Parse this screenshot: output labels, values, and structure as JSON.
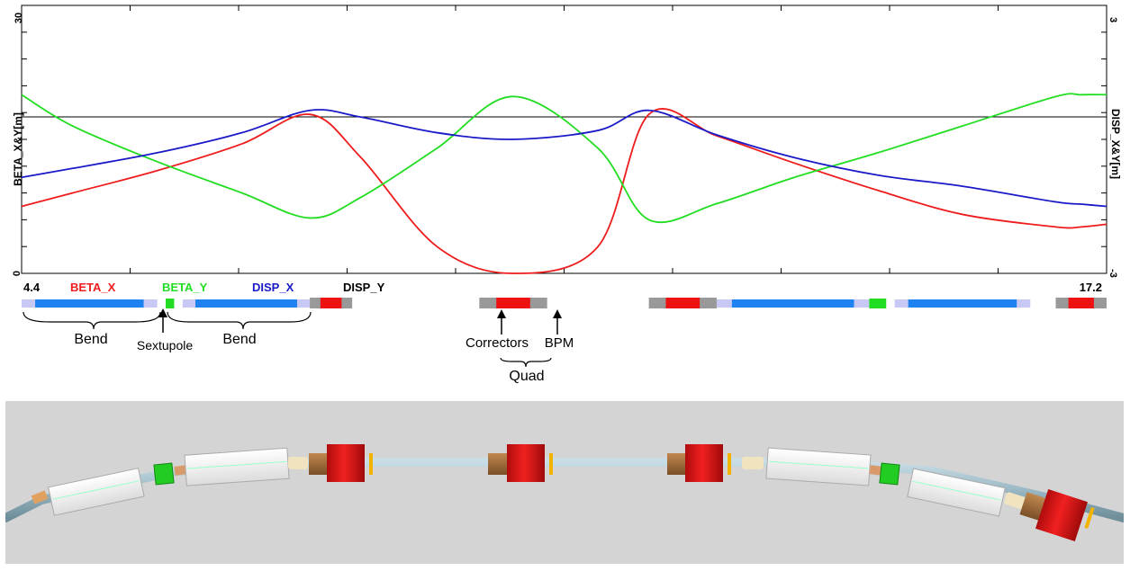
{
  "chart_data": {
    "type": "line",
    "x": [
      4.4,
      5.0,
      6.0,
      7.0,
      7.8,
      8.4,
      9.3,
      10.2,
      11.2,
      11.8,
      12.6,
      13.5,
      14.5,
      15.5,
      16.6,
      16.9,
      17.2
    ],
    "xlim": [
      4.4,
      17.2
    ],
    "y_left_label": "BETA_X&Y[m]",
    "y_right_label": "DISP_X&Y[m]",
    "y_left_lim": [
      0,
      30
    ],
    "y_right_lim": [
      -3,
      3
    ],
    "y_left_ticks": [
      "0",
      "30"
    ],
    "y_right_ticks": [
      "-3",
      "3"
    ],
    "x_range_labels": {
      "start": "4.4",
      "end": "17.2"
    },
    "series": [
      {
        "name": "BETA_X",
        "axis": "left",
        "color": "#ee1c1c",
        "values": [
          7.5,
          9.0,
          11.5,
          14.5,
          17.8,
          13.0,
          3.0,
          0.0,
          3.0,
          17.8,
          15.4,
          12.4,
          9.3,
          6.6,
          5.2,
          5.2,
          5.5
        ]
      },
      {
        "name": "BETA_Y",
        "axis": "left",
        "color": "#22dd22",
        "values": [
          20.0,
          16.5,
          12.5,
          9.0,
          6.2,
          8.5,
          14.0,
          19.8,
          14.0,
          6.0,
          7.8,
          10.7,
          13.5,
          16.5,
          19.8,
          20.0,
          20.0
        ]
      },
      {
        "name": "DISP_X",
        "axis": "right",
        "color": "#1a1ac8",
        "values": [
          -0.85,
          -0.65,
          -0.3,
          0.15,
          0.65,
          0.5,
          0.15,
          0.0,
          0.2,
          0.65,
          0.1,
          -0.4,
          -0.8,
          -1.05,
          -1.4,
          -1.45,
          -1.5
        ]
      },
      {
        "name": "DISP_Y",
        "axis": "right",
        "color": "#000000",
        "values": [
          0,
          0,
          0,
          0,
          0,
          0,
          0,
          0,
          0,
          0,
          0,
          0,
          0,
          0,
          0,
          0,
          0
        ]
      }
    ]
  },
  "lattice": {
    "colors": {
      "bend": "#1e82f0",
      "bend_pad": "#c8c8f5",
      "quad": "#ee1111",
      "quad_pad": "#999999",
      "sextupole": "#22dd22"
    },
    "elements": [
      {
        "type": "bend",
        "s_start": 4.4,
        "s_end": 6.0
      },
      {
        "type": "sextupole",
        "s_start": 6.1,
        "s_end": 6.2
      },
      {
        "type": "bend",
        "s_start": 6.3,
        "s_end": 7.8
      },
      {
        "type": "quad",
        "s_start": 7.8,
        "s_end": 8.3
      },
      {
        "type": "quad",
        "s_start": 9.8,
        "s_end": 10.6
      },
      {
        "type": "quad",
        "s_start": 11.8,
        "s_end": 12.6
      },
      {
        "type": "bend",
        "s_start": 12.6,
        "s_end": 14.4
      },
      {
        "type": "sextupole",
        "s_start": 14.4,
        "s_end": 14.6
      },
      {
        "type": "bend",
        "s_start": 14.7,
        "s_end": 16.3
      },
      {
        "type": "quad",
        "s_start": 16.6,
        "s_end": 17.2
      }
    ]
  },
  "annotations": {
    "bend_left": "Bend",
    "sextupole": "Sextupole",
    "bend_right": "Bend",
    "correctors": "Correctors",
    "bpm": "BPM",
    "quad": "Quad"
  },
  "render": {
    "background": "#d4d4d4",
    "pipe_color": "#9ab8c4",
    "dipole_color": "#f4f4f4",
    "quad_color": "#e81515",
    "sextupole_color": "#22cc22",
    "corrector_color": "#a66c3a",
    "bpm_color": "#f2b400"
  }
}
